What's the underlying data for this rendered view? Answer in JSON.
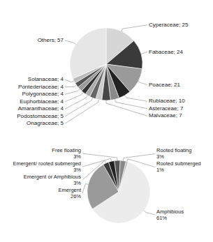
{
  "chart_data": [
    {
      "type": "pie",
      "categories": [
        "Cyperaceae",
        "Fabaceae",
        "Poaceae",
        "Rubiaceae",
        "Asteraceae",
        "Malvaceae",
        "Onagraceae",
        "Podostomaceae",
        "Amaranthaceae",
        "Euphorbiaceae",
        "Polygonaceae",
        "Pontederiaceae",
        "Solanaceae",
        "Others"
      ],
      "values": [
        25,
        24,
        21,
        10,
        7,
        7,
        5,
        5,
        4,
        4,
        4,
        4,
        4,
        57
      ],
      "value_labels": [
        "Cyperaceae; 25",
        "Fabaceae; 24",
        "Poaceae; 21",
        "Rubiaceae; 10",
        "Asteraceae; 7",
        "Malvaceae; 7",
        "Onagraceae; 5",
        "Podostomaceae; 5",
        "Amaranthaceae; 4",
        "Euphorbiaceae; 4",
        "Polygonaceae; 4",
        "Pontederiaceae; 4",
        "Solanaceae; 4",
        "Others; 57"
      ],
      "colors": [
        "#d6d6d6",
        "#3a3a3a",
        "#9a9a9a",
        "#222222",
        "#8a8a8a",
        "#474747",
        "#cccccc",
        "#666666",
        "#ababab",
        "#333333",
        "#999999",
        "#555555",
        "#bbbbbb",
        "#e6e6e6"
      ],
      "data_labels": true
    },
    {
      "type": "pie",
      "categories": [
        "Amphibious",
        "Emergent",
        "Emergent or Amphibious",
        "Emergent/ rooted submerged",
        "Free floating",
        "Rooted floating",
        "Rooted submerged"
      ],
      "values": [
        61,
        26,
        3,
        3,
        3,
        3,
        1
      ],
      "value_labels": [
        "61%",
        "26%",
        "3%",
        "3%",
        "3%",
        "3%",
        "1%"
      ],
      "colors": [
        "#ececec",
        "#9a9a9a",
        "#3a3a3a",
        "#222222",
        "#555555",
        "#888888",
        "#bbbbbb"
      ],
      "data_labels": true
    }
  ]
}
